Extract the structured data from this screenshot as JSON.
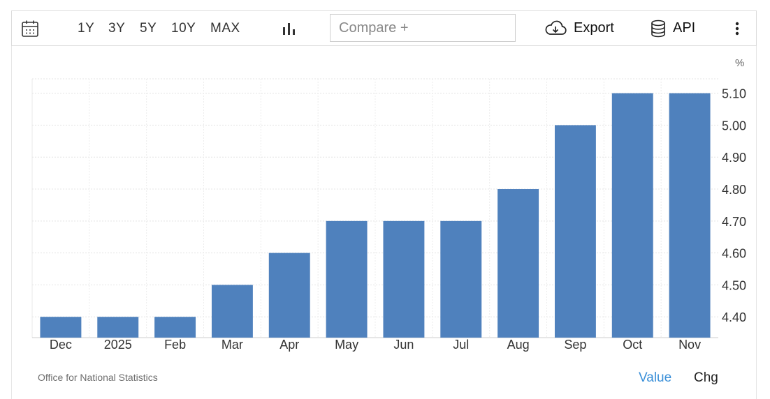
{
  "toolbar": {
    "ranges": [
      "1Y",
      "3Y",
      "5Y",
      "10Y",
      "MAX"
    ],
    "compare_placeholder": "Compare +",
    "export_label": "Export",
    "api_label": "API"
  },
  "footer": {
    "source": "Office for National Statistics",
    "value_label": "Value",
    "chg_label": "Chg"
  },
  "colors": {
    "bar": "#4f81bd",
    "active_toggle": "#3a8fd8",
    "grid": "#e4e4e4"
  },
  "chart_data": {
    "type": "bar",
    "unit_label": "%",
    "categories": [
      "Dec",
      "2025",
      "Feb",
      "Mar",
      "Apr",
      "May",
      "Jun",
      "Jul",
      "Aug",
      "Sep",
      "Oct",
      "Nov"
    ],
    "values": [
      4.4,
      4.4,
      4.4,
      4.5,
      4.6,
      4.7,
      4.7,
      4.7,
      4.8,
      5.0,
      5.1,
      5.1
    ],
    "yticks": [
      4.4,
      4.5,
      4.6,
      4.7,
      4.8,
      4.9,
      5.0,
      5.1
    ],
    "ytick_labels": [
      "4.40",
      "4.50",
      "4.60",
      "4.70",
      "4.80",
      "4.90",
      "5.00",
      "5.10"
    ],
    "ylim": [
      4.335,
      5.145
    ],
    "y_axis_position": "right",
    "grid": true
  }
}
